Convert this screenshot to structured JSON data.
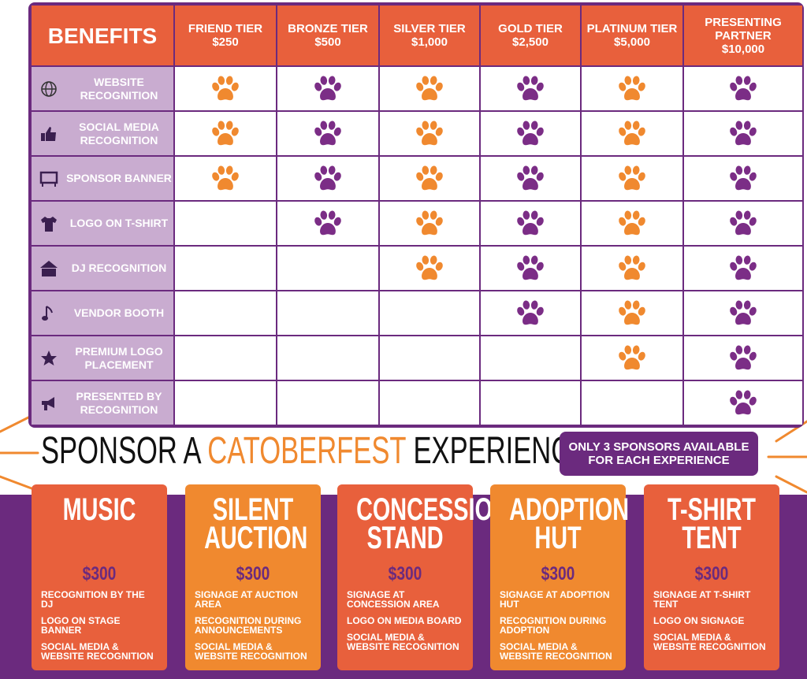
{
  "table": {
    "header": "BENEFITS",
    "tiers": [
      {
        "name": "FRIEND TIER",
        "price": "$250"
      },
      {
        "name": "BRONZE TIER",
        "price": "$500"
      },
      {
        "name": "SILVER TIER",
        "price": "$1,000"
      },
      {
        "name": "GOLD TIER",
        "price": "$2,500"
      },
      {
        "name": "PLATINUM TIER",
        "price": "$5,000"
      },
      {
        "name": "PRESENTING PARTNER",
        "price": "$10,000"
      }
    ],
    "rows": [
      {
        "benefit": "WEBSITE RECOGNITION",
        "included": [
          true,
          true,
          true,
          true,
          true,
          true
        ]
      },
      {
        "benefit": "SOCIAL MEDIA RECOGNITION",
        "included": [
          true,
          true,
          true,
          true,
          true,
          true
        ]
      },
      {
        "benefit": "SPONSOR BANNER",
        "included": [
          true,
          true,
          true,
          true,
          true,
          true
        ]
      },
      {
        "benefit": "LOGO ON T-SHIRT",
        "included": [
          false,
          true,
          true,
          true,
          true,
          true
        ]
      },
      {
        "benefit": "DJ RECOGNITION",
        "included": [
          false,
          false,
          true,
          true,
          true,
          true
        ]
      },
      {
        "benefit": "VENDOR BOOTH",
        "included": [
          false,
          false,
          false,
          true,
          true,
          true
        ]
      },
      {
        "benefit": "PREMIUM LOGO PLACEMENT",
        "included": [
          false,
          false,
          false,
          false,
          true,
          true
        ]
      },
      {
        "benefit": "PRESENTED BY RECOGNITION",
        "included": [
          false,
          false,
          false,
          false,
          false,
          true
        ]
      }
    ]
  },
  "banner": {
    "parts": [
      "SPONSOR A",
      "CATOBERFEST",
      "EXPERIENCE!"
    ],
    "note": "ONLY 3 SPONSORS AVAILABLE FOR EACH EXPERIENCE"
  },
  "experiences": [
    {
      "title": "MUSIC",
      "price": "$300",
      "items": [
        "RECOGNITION BY THE DJ",
        "LOGO ON STAGE BANNER",
        "SOCIAL MEDIA & WEBSITE RECOGNITION"
      ]
    },
    {
      "title": "SILENT AUCTION",
      "price": "$300",
      "items": [
        "SIGNAGE AT AUCTION AREA",
        "RECOGNITION DURING ANNOUNCEMENTS",
        "SOCIAL MEDIA & WEBSITE RECOGNITION"
      ]
    },
    {
      "title": "CONCESSION STAND",
      "price": "$300",
      "items": [
        "SIGNAGE AT CONCESSION AREA",
        "LOGO ON MEDIA BOARD",
        "SOCIAL MEDIA & WEBSITE RECOGNITION"
      ]
    },
    {
      "title": "ADOPTION HUT",
      "price": "$300",
      "items": [
        "SIGNAGE AT ADOPTION HUT",
        "RECOGNITION DURING ADOPTION",
        "SOCIAL MEDIA & WEBSITE RECOGNITION"
      ]
    },
    {
      "title": "T-SHIRT TENT",
      "price": "$300",
      "items": [
        "SIGNAGE AT T-SHIRT TENT",
        "LOGO ON SIGNAGE",
        "SOCIAL MEDIA & WEBSITE RECOGNITION"
      ]
    }
  ]
}
